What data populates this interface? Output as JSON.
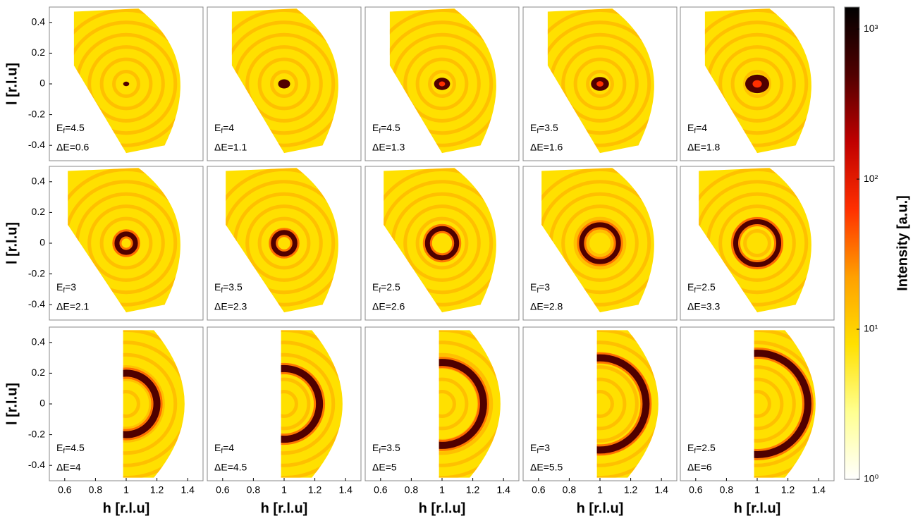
{
  "chart_data": [
    {
      "type": "intensity-map",
      "annotation": {
        "ef": [
          "E",
          "f",
          "=4.5"
        ],
        "de": "ΔE=0.6"
      },
      "xlim": [
        0.5,
        1.5
      ],
      "ylim": [
        -0.5,
        0.5
      ],
      "yticks": [
        -0.4,
        -0.2,
        0,
        0.2,
        0.4
      ],
      "ylabel": "l [r.l.u]"
    },
    {
      "type": "intensity-map",
      "annotation": {
        "ef": [
          "E",
          "f",
          "=4"
        ],
        "de": "ΔE=1.1"
      },
      "xlim": [
        0.5,
        1.5
      ],
      "ylim": [
        -0.5,
        0.5
      ]
    },
    {
      "type": "intensity-map",
      "annotation": {
        "ef": [
          "E",
          "f",
          "=4.5"
        ],
        "de": "ΔE=1.3"
      },
      "xlim": [
        0.5,
        1.5
      ],
      "ylim": [
        -0.5,
        0.5
      ]
    },
    {
      "type": "intensity-map",
      "annotation": {
        "ef": [
          "E",
          "f",
          "=3.5"
        ],
        "de": "ΔE=1.6"
      },
      "xlim": [
        0.5,
        1.5
      ],
      "ylim": [
        -0.5,
        0.5
      ]
    },
    {
      "type": "intensity-map",
      "annotation": {
        "ef": [
          "E",
          "f",
          "=4"
        ],
        "de": "ΔE=1.8"
      },
      "xlim": [
        0.5,
        1.5
      ],
      "ylim": [
        -0.5,
        0.5
      ]
    },
    {
      "type": "intensity-map",
      "annotation": {
        "ef": [
          "E",
          "f",
          "=3"
        ],
        "de": "ΔE=2.1"
      },
      "xlim": [
        0.5,
        1.5
      ],
      "ylim": [
        -0.5,
        0.5
      ],
      "yticks": [
        -0.4,
        -0.2,
        0,
        0.2,
        0.4
      ],
      "ylabel": "l [r.l.u]"
    },
    {
      "type": "intensity-map",
      "annotation": {
        "ef": [
          "E",
          "f",
          "=3.5"
        ],
        "de": "ΔE=2.3"
      },
      "xlim": [
        0.5,
        1.5
      ],
      "ylim": [
        -0.5,
        0.5
      ]
    },
    {
      "type": "intensity-map",
      "annotation": {
        "ef": [
          "E",
          "f",
          "=2.5"
        ],
        "de": "ΔE=2.6"
      },
      "xlim": [
        0.5,
        1.5
      ],
      "ylim": [
        -0.5,
        0.5
      ]
    },
    {
      "type": "intensity-map",
      "annotation": {
        "ef": [
          "E",
          "f",
          "=3"
        ],
        "de": "ΔE=2.8"
      },
      "xlim": [
        0.5,
        1.5
      ],
      "ylim": [
        -0.5,
        0.5
      ]
    },
    {
      "type": "intensity-map",
      "annotation": {
        "ef": [
          "E",
          "f",
          "=2.5"
        ],
        "de": "ΔE=3.3"
      },
      "xlim": [
        0.5,
        1.5
      ],
      "ylim": [
        -0.5,
        0.5
      ]
    },
    {
      "type": "intensity-map",
      "annotation": {
        "ef": [
          "E",
          "f",
          "=4.5"
        ],
        "de": "ΔE=4"
      },
      "xlim": [
        0.5,
        1.5
      ],
      "ylim": [
        -0.5,
        0.5
      ],
      "yticks": [
        -0.4,
        -0.2,
        0,
        0.2,
        0.4
      ],
      "ylabel": "l [r.l.u]",
      "xticks": [
        0.6,
        0.8,
        1,
        1.2,
        1.4
      ],
      "xlabel": "h [r.l.u]"
    },
    {
      "type": "intensity-map",
      "annotation": {
        "ef": [
          "E",
          "f",
          "=4"
        ],
        "de": "ΔE=4.5"
      },
      "xlim": [
        0.5,
        1.5
      ],
      "ylim": [
        -0.5,
        0.5
      ],
      "xticks": [
        0.6,
        0.8,
        1,
        1.2,
        1.4
      ],
      "xlabel": "h [r.l.u]"
    },
    {
      "type": "intensity-map",
      "annotation": {
        "ef": [
          "E",
          "f",
          "=3.5"
        ],
        "de": "ΔE=5"
      },
      "xlim": [
        0.5,
        1.5
      ],
      "ylim": [
        -0.5,
        0.5
      ],
      "xticks": [
        0.6,
        0.8,
        1,
        1.2,
        1.4
      ],
      "xlabel": "h [r.l.u]"
    },
    {
      "type": "intensity-map",
      "annotation": {
        "ef": [
          "E",
          "f",
          "=3"
        ],
        "de": "ΔE=5.5"
      },
      "xlim": [
        0.5,
        1.5
      ],
      "ylim": [
        -0.5,
        0.5
      ],
      "xticks": [
        0.6,
        0.8,
        1,
        1.2,
        1.4
      ],
      "xlabel": "h [r.l.u]"
    },
    {
      "type": "intensity-map",
      "annotation": {
        "ef": [
          "E",
          "f",
          "=2.5"
        ],
        "de": "ΔE=6"
      },
      "xlim": [
        0.5,
        1.5
      ],
      "ylim": [
        -0.5,
        0.5
      ],
      "xticks": [
        0.6,
        0.8,
        1,
        1.2,
        1.4
      ],
      "xlabel": "h [r.l.u]"
    },
    {
      "type": "colorbar",
      "label": "Intensity [a.u.]",
      "log_scale": true,
      "ylim": [
        1,
        1400
      ],
      "yticks": [
        {
          "value": 1,
          "label": "10⁰"
        },
        {
          "value": 10,
          "label": "10¹"
        },
        {
          "value": 100,
          "label": "10²"
        },
        {
          "value": 1000,
          "label": "10³"
        }
      ],
      "colormap": [
        "#ffffff",
        "#ffff90",
        "#ffe000",
        "#ffa000",
        "#ff3000",
        "#c00000",
        "#500000",
        "#000000"
      ]
    }
  ]
}
